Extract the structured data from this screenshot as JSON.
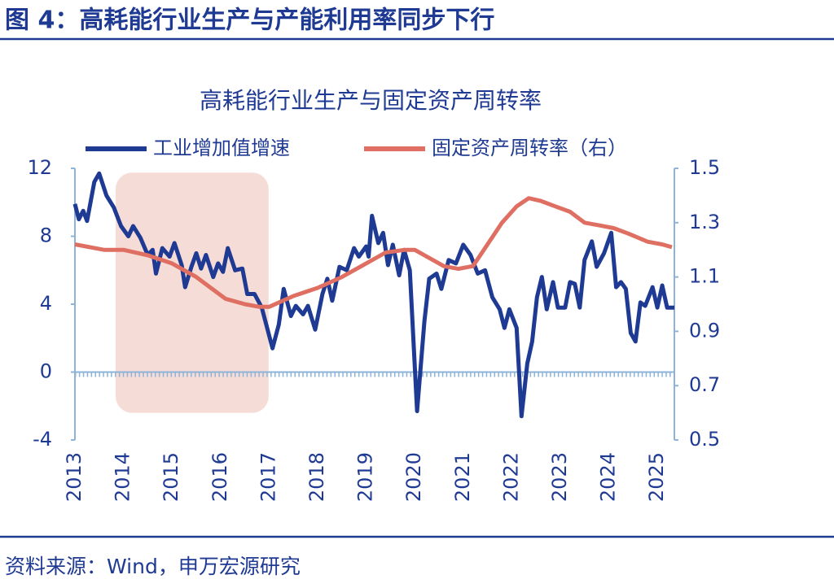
{
  "header": {
    "title": "图 4：高耗能行业生产与产能利用率同步下行"
  },
  "source": "资料来源：Wind，申万宏源研究",
  "chart_data": {
    "type": "line",
    "title": "高耗能行业生产与固定资产周转率",
    "xlim": [
      2013,
      2025.35
    ],
    "xticks": [
      2013,
      2014,
      2015,
      2016,
      2017,
      2018,
      2019,
      2020,
      2021,
      2022,
      2023,
      2024,
      2025
    ],
    "ylim": [
      -4,
      12
    ],
    "yticks": [
      -4,
      0,
      4,
      8,
      12
    ],
    "y2lim": [
      0.5,
      1.5
    ],
    "y2ticks": [
      0.5,
      0.7,
      0.9,
      1.1,
      1.3,
      1.5
    ],
    "highlight": {
      "x": [
        2013.84,
        2016.99
      ],
      "y": [
        -2.4,
        11.75
      ],
      "color": "#f6dcd6"
    },
    "series": [
      {
        "name": "工业增加值增速",
        "color": "#1f3a93",
        "x": [
          2013.0,
          2013.08,
          2013.17,
          2013.25,
          2013.4,
          2013.5,
          2013.65,
          2013.8,
          2013.95,
          2014.1,
          2014.2,
          2014.35,
          2014.5,
          2014.6,
          2014.67,
          2014.8,
          2014.95,
          2015.05,
          2015.2,
          2015.27,
          2015.4,
          2015.5,
          2015.6,
          2015.7,
          2015.85,
          2015.95,
          2016.05,
          2016.15,
          2016.3,
          2016.45,
          2016.55,
          2016.7,
          2016.85,
          2017.07,
          2017.2,
          2017.3,
          2017.45,
          2017.55,
          2017.7,
          2017.8,
          2017.95,
          2018.1,
          2018.2,
          2018.3,
          2018.45,
          2018.6,
          2018.75,
          2018.85,
          2019.0,
          2019.05,
          2019.12,
          2019.25,
          2019.35,
          2019.45,
          2019.55,
          2019.68,
          2019.78,
          2019.9,
          2020.05,
          2020.2,
          2020.3,
          2020.45,
          2020.55,
          2020.7,
          2020.85,
          2021.0,
          2021.15,
          2021.3,
          2021.45,
          2021.6,
          2021.75,
          2021.85,
          2021.95,
          2022.1,
          2022.2,
          2022.32,
          2022.42,
          2022.52,
          2022.62,
          2022.72,
          2022.85,
          2022.95,
          2023.1,
          2023.2,
          2023.3,
          2023.4,
          2023.5,
          2023.65,
          2023.75,
          2023.9,
          2024.05,
          2024.15,
          2024.25,
          2024.35,
          2024.45,
          2024.55,
          2024.65,
          2024.75,
          2024.9,
          2025.0,
          2025.1,
          2025.2,
          2025.35
        ],
        "values": [
          9.9,
          9.0,
          9.5,
          8.9,
          11.2,
          11.7,
          10.4,
          9.7,
          8.6,
          8.0,
          8.6,
          7.9,
          6.9,
          7.2,
          5.8,
          7.3,
          6.8,
          7.6,
          6.3,
          5.0,
          6.2,
          7.0,
          6.1,
          6.9,
          5.6,
          6.4,
          5.9,
          7.3,
          6.0,
          6.1,
          4.6,
          4.6,
          3.8,
          1.4,
          2.8,
          4.9,
          3.3,
          3.9,
          3.4,
          3.9,
          2.5,
          4.6,
          5.5,
          4.2,
          6.2,
          6.0,
          7.3,
          6.8,
          7.4,
          6.8,
          9.2,
          7.6,
          8.2,
          6.3,
          7.5,
          5.7,
          7.2,
          6.0,
          -2.3,
          3.0,
          5.5,
          5.8,
          4.9,
          6.6,
          6.4,
          7.5,
          6.9,
          5.8,
          6.0,
          4.4,
          3.7,
          2.6,
          3.7,
          2.6,
          -2.6,
          0.5,
          1.8,
          4.4,
          5.6,
          3.7,
          5.3,
          3.8,
          3.8,
          5.3,
          5.2,
          3.8,
          6.6,
          7.7,
          6.2,
          7.0,
          8.2,
          5.0,
          5.3,
          4.9,
          2.3,
          1.8,
          4.1,
          3.9,
          5.0,
          3.8,
          5.1,
          3.8,
          3.8
        ]
      },
      {
        "name": "固定资产周转率（右）",
        "color": "#de6f62",
        "axis": "y2",
        "x": [
          2013.0,
          2013.6,
          2014.0,
          2014.5,
          2015.0,
          2015.5,
          2015.8,
          2016.1,
          2016.5,
          2016.8,
          2017.0,
          2017.5,
          2018.0,
          2018.5,
          2019.0,
          2019.4,
          2019.8,
          2020.0,
          2020.3,
          2020.6,
          2020.9,
          2021.2,
          2021.5,
          2021.8,
          2022.1,
          2022.35,
          2022.6,
          2022.9,
          2023.2,
          2023.5,
          2023.8,
          2024.1,
          2024.4,
          2024.8,
          2025.1,
          2025.3
        ],
        "values": [
          1.22,
          1.2,
          1.2,
          1.18,
          1.15,
          1.1,
          1.06,
          1.02,
          1.0,
          0.99,
          0.99,
          1.03,
          1.06,
          1.1,
          1.15,
          1.19,
          1.2,
          1.2,
          1.17,
          1.14,
          1.13,
          1.14,
          1.22,
          1.3,
          1.36,
          1.39,
          1.38,
          1.36,
          1.34,
          1.3,
          1.29,
          1.28,
          1.26,
          1.23,
          1.22,
          1.21
        ]
      }
    ]
  }
}
